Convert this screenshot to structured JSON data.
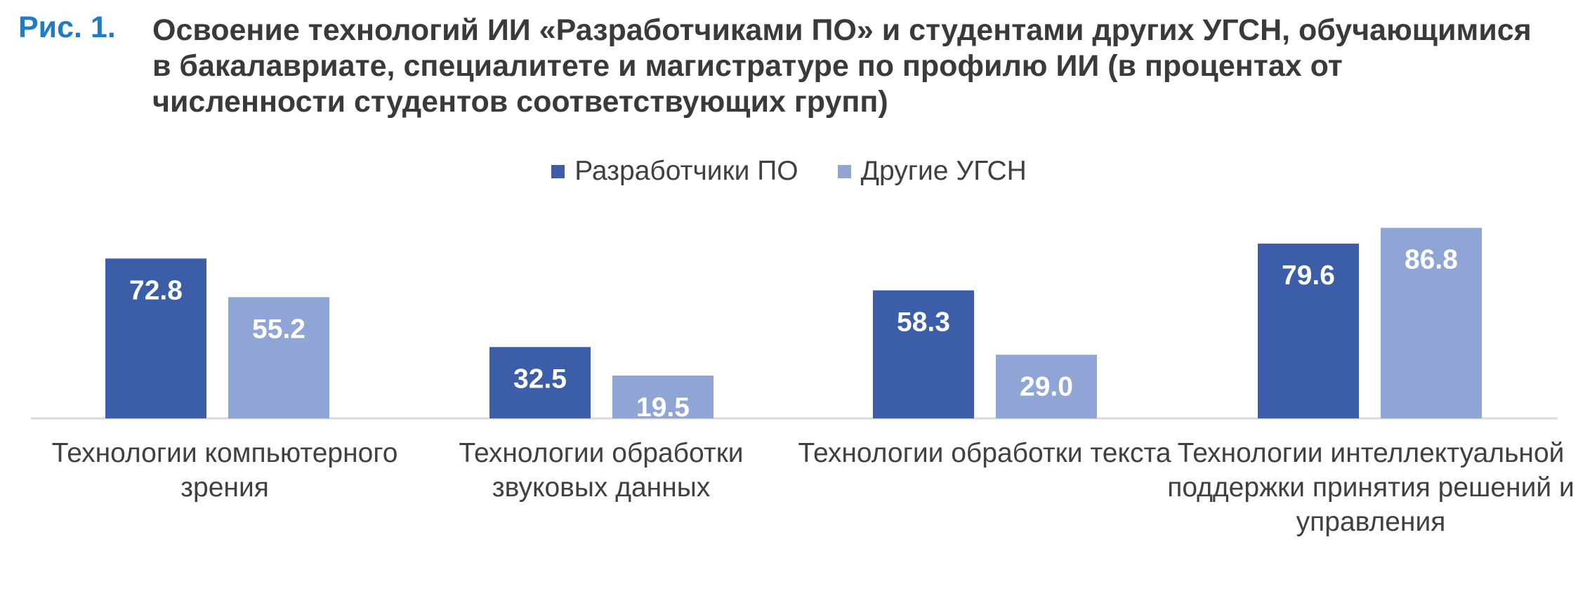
{
  "figure": {
    "label": "Рис. 1.",
    "title": "Освоение технологий ИИ «Разработчиками ПО» и студентами других УГСН, обучающимися в бакалавриате, специалитете и магистратуре по профилю ИИ (в процентах от численности студентов соответствующих групп)"
  },
  "colors": {
    "series1": "#3c5ea8",
    "series2": "#8ea5d6",
    "baseline": "#d9d9d9",
    "value_label": "#ffffff"
  },
  "chart_data": {
    "type": "bar",
    "title": "Освоение технологий ИИ «Разработчиками ПО» и студентами других УГСН, обучающимися в бакалавриате, специалитете и магистратуре по профилю ИИ (в процентах от численности студентов соответствующих групп)",
    "categories": [
      "Технологии компьютерного зрения",
      "Технологии обработки звуковых данных",
      "Технологии обработки текста",
      "Технологии интеллектуальной поддержки принятия решений и управления"
    ],
    "series": [
      {
        "name": "Разработчики ПО",
        "values": [
          72.8,
          32.5,
          58.3,
          79.6
        ],
        "labels": [
          "72.8",
          "32.5",
          "58.3",
          "79.6"
        ]
      },
      {
        "name": "Другие УГСН",
        "values": [
          55.2,
          19.5,
          29.0,
          86.8
        ],
        "labels": [
          "55.2",
          "19.5",
          "29.0",
          "86.8"
        ]
      }
    ],
    "ylim": [
      0,
      100
    ],
    "legend": "top-center",
    "grid": false,
    "xlabel": "",
    "ylabel": ""
  }
}
